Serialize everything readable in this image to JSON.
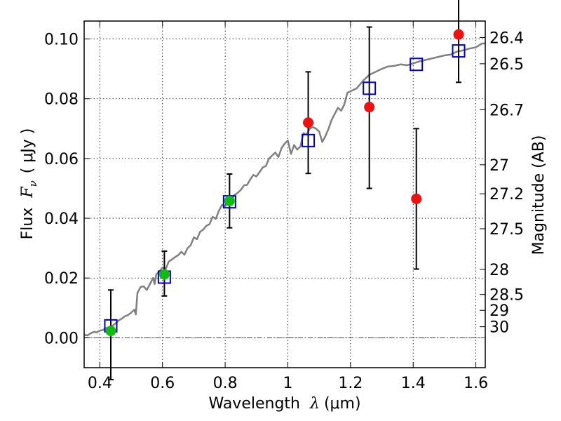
{
  "chart_data": {
    "type": "scatter",
    "xlabel_text": "Wavelength",
    "xlabel_symbol": "λ",
    "xlabel_unit": "(μm)",
    "ylabel_text": "Flux",
    "ylabel_symbol": "F",
    "ylabel_subscript": "ν",
    "ylabel_unit": "( μJy )",
    "y2label": "Magnitude (AB)",
    "xlim": [
      0.35,
      1.63
    ],
    "ylim": [
      -0.01,
      0.106
    ],
    "x_ticks": [
      0.4,
      0.6,
      0.8,
      1.0,
      1.2,
      1.4,
      1.6
    ],
    "x_tick_labels": [
      "0.4",
      "0.6",
      "0.8",
      "1",
      "1.2",
      "1.4",
      "1.6"
    ],
    "y_ticks": [
      0.0,
      0.02,
      0.04,
      0.06,
      0.08,
      0.1
    ],
    "y_tick_labels": [
      "0.00",
      "0.02",
      "0.04",
      "0.06",
      "0.08",
      "0.10"
    ],
    "y2_ticks": [
      {
        "label": "26.4",
        "flux": 0.1005
      },
      {
        "label": "26.5",
        "flux": 0.0917
      },
      {
        "label": "26.7",
        "flux": 0.0763
      },
      {
        "label": "27",
        "flux": 0.0579
      },
      {
        "label": "27.2",
        "flux": 0.0482
      },
      {
        "label": "27.5",
        "flux": 0.0365
      },
      {
        "label": "28",
        "flux": 0.0229
      },
      {
        "label": "28.5",
        "flux": 0.0145
      },
      {
        "label": "29",
        "flux": 0.0092
      },
      {
        "label": "30",
        "flux": 0.0037
      }
    ],
    "grid": true,
    "zero_line": true,
    "colors": {
      "model": "#808080",
      "red": "#ee1111",
      "green": "#11bb11",
      "blue": "#0000cc",
      "errorbar": "#000000"
    },
    "series": [
      {
        "name": "model spectrum",
        "kind": "line",
        "x": [
          0.35,
          0.36,
          0.37,
          0.38,
          0.39,
          0.4,
          0.41,
          0.42,
          0.43,
          0.44,
          0.45,
          0.46,
          0.47,
          0.48,
          0.49,
          0.5,
          0.51,
          0.515,
          0.52,
          0.53,
          0.54,
          0.55,
          0.56,
          0.57,
          0.575,
          0.58,
          0.59,
          0.6,
          0.61,
          0.62,
          0.63,
          0.64,
          0.65,
          0.66,
          0.67,
          0.68,
          0.69,
          0.7,
          0.71,
          0.72,
          0.73,
          0.74,
          0.75,
          0.76,
          0.77,
          0.78,
          0.79,
          0.8,
          0.81,
          0.82,
          0.83,
          0.84,
          0.85,
          0.86,
          0.87,
          0.88,
          0.89,
          0.9,
          0.91,
          0.92,
          0.93,
          0.94,
          0.95,
          0.96,
          0.97,
          0.98,
          0.99,
          1.0,
          1.01,
          1.02,
          1.03,
          1.04,
          1.05,
          1.06,
          1.07,
          1.08,
          1.09,
          1.1,
          1.11,
          1.12,
          1.13,
          1.14,
          1.15,
          1.16,
          1.17,
          1.18,
          1.19,
          1.2,
          1.22,
          1.24,
          1.26,
          1.28,
          1.3,
          1.32,
          1.34,
          1.36,
          1.38,
          1.4,
          1.42,
          1.44,
          1.46,
          1.48,
          1.5,
          1.52,
          1.54,
          1.56,
          1.58,
          1.6,
          1.62,
          1.63
        ],
        "y": [
          0.001,
          0.0008,
          0.0014,
          0.002,
          0.0018,
          0.0024,
          0.0026,
          0.0033,
          0.0031,
          0.004,
          0.0048,
          0.0058,
          0.0064,
          0.0072,
          0.0076,
          0.0084,
          0.0094,
          0.0078,
          0.015,
          0.017,
          0.0172,
          0.016,
          0.018,
          0.02,
          0.018,
          0.0212,
          0.0222,
          0.0235,
          0.023,
          0.0255,
          0.0262,
          0.027,
          0.0276,
          0.0288,
          0.0278,
          0.03,
          0.031,
          0.0336,
          0.033,
          0.0355,
          0.0362,
          0.0375,
          0.038,
          0.0405,
          0.0398,
          0.0425,
          0.0445,
          0.044,
          0.0455,
          0.0462,
          0.0478,
          0.0485,
          0.0495,
          0.051,
          0.0512,
          0.053,
          0.0545,
          0.054,
          0.0555,
          0.057,
          0.0575,
          0.06,
          0.061,
          0.062,
          0.0605,
          0.0635,
          0.065,
          0.066,
          0.0615,
          0.0645,
          0.063,
          0.064,
          0.0685,
          0.068,
          0.07,
          0.0705,
          0.07,
          0.069,
          0.0655,
          0.0675,
          0.07,
          0.073,
          0.075,
          0.077,
          0.076,
          0.078,
          0.082,
          0.0825,
          0.0835,
          0.086,
          0.088,
          0.089,
          0.09,
          0.0908,
          0.091,
          0.0915,
          0.0912,
          0.0918,
          0.0925,
          0.093,
          0.0935,
          0.094,
          0.0945,
          0.0948,
          0.0958,
          0.0962,
          0.0968,
          0.0972,
          0.0985,
          0.0985
        ]
      },
      {
        "name": "model photometry",
        "kind": "open-square",
        "x": [
          0.435,
          0.606,
          0.814,
          1.065,
          1.26,
          1.41,
          1.545
        ],
        "y": [
          0.004,
          0.0203,
          0.0455,
          0.066,
          0.0835,
          0.0915,
          0.096
        ]
      },
      {
        "name": "observed detections (green)",
        "kind": "filled-circle",
        "x": [
          0.435,
          0.606,
          0.814
        ],
        "y": [
          0.0023,
          0.0212,
          0.0458
        ],
        "yerr_low": [
          0.0163,
          0.0072,
          0.009
        ],
        "yerr_high": [
          0.0137,
          0.0078,
          0.009
        ]
      },
      {
        "name": "observed fluxes (red)",
        "kind": "filled-circle",
        "x": [
          1.065,
          1.26,
          1.41,
          1.545
        ],
        "y": [
          0.072,
          0.0772,
          0.0465,
          0.1015
        ],
        "yerr_low": [
          0.017,
          0.0272,
          0.0235,
          0.016
        ],
        "yerr_high": [
          0.017,
          0.0268,
          0.0235,
          0.016
        ]
      }
    ]
  }
}
